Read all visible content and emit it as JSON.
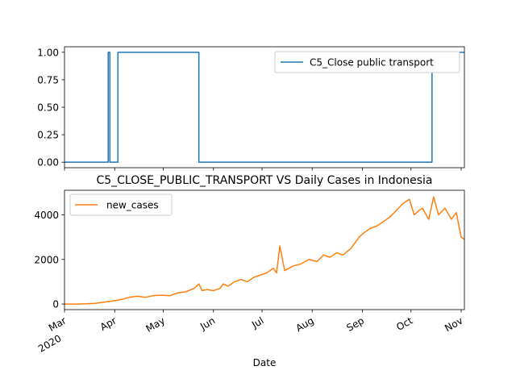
{
  "chart_data": [
    {
      "type": "line",
      "title": "",
      "xlabel": "",
      "ylabel": "",
      "ylim": [
        -0.05,
        1.05
      ],
      "y_ticks": [
        "0.00",
        "0.25",
        "0.50",
        "0.75",
        "1.00"
      ],
      "legend": {
        "placement": "upper right",
        "entries": [
          "C5_Close public transport"
        ]
      },
      "grid": false,
      "series": [
        {
          "name": "C5_Close public transport",
          "color": "#1f77b4",
          "x": [
            "2020-03-01",
            "2020-03-28",
            "2020-03-28",
            "2020-03-29",
            "2020-03-29",
            "2020-04-03",
            "2020-04-03",
            "2020-05-23",
            "2020-05-23",
            "2020-10-14",
            "2020-10-14",
            "2020-11-03"
          ],
          "values": [
            0,
            0,
            1,
            1,
            0,
            0,
            1,
            1,
            0,
            0,
            1,
            1
          ]
        }
      ]
    },
    {
      "type": "line",
      "title": "C5_CLOSE_PUBLIC_TRANSPORT VS Daily Cases in Indonesia",
      "xlabel": "Date",
      "ylabel": "",
      "ylim": [
        -250,
        5100
      ],
      "y_ticks": [
        "0",
        "2000",
        "4000"
      ],
      "x_ticks": [
        {
          "date": "2020-03-01",
          "label": "Mar",
          "sublabel": "2020"
        },
        {
          "date": "2020-04-01",
          "label": "Apr"
        },
        {
          "date": "2020-05-01",
          "label": "May"
        },
        {
          "date": "2020-06-01",
          "label": "Jun"
        },
        {
          "date": "2020-07-01",
          "label": "Jul"
        },
        {
          "date": "2020-08-01",
          "label": "Aug"
        },
        {
          "date": "2020-09-01",
          "label": "Sep"
        },
        {
          "date": "2020-10-01",
          "label": "Oct"
        },
        {
          "date": "2020-11-01",
          "label": "Nov"
        }
      ],
      "legend": {
        "placement": "upper left",
        "entries": [
          "new_cases"
        ]
      },
      "grid": false,
      "series": [
        {
          "name": "new_cases",
          "color": "#ff7f0e",
          "x": [
            "2020-03-01",
            "2020-03-10",
            "2020-03-20",
            "2020-03-25",
            "2020-03-30",
            "2020-04-05",
            "2020-04-10",
            "2020-04-15",
            "2020-04-20",
            "2020-04-25",
            "2020-04-30",
            "2020-05-05",
            "2020-05-10",
            "2020-05-15",
            "2020-05-20",
            "2020-05-23",
            "2020-05-25",
            "2020-05-28",
            "2020-06-01",
            "2020-06-05",
            "2020-06-07",
            "2020-06-10",
            "2020-06-14",
            "2020-06-18",
            "2020-06-22",
            "2020-06-26",
            "2020-06-30",
            "2020-07-04",
            "2020-07-08",
            "2020-07-10",
            "2020-07-12",
            "2020-07-15",
            "2020-07-20",
            "2020-07-25",
            "2020-07-30",
            "2020-08-04",
            "2020-08-08",
            "2020-08-12",
            "2020-08-16",
            "2020-08-20",
            "2020-08-25",
            "2020-08-30",
            "2020-09-02",
            "2020-09-06",
            "2020-09-10",
            "2020-09-14",
            "2020-09-18",
            "2020-09-22",
            "2020-09-26",
            "2020-09-30",
            "2020-10-03",
            "2020-10-06",
            "2020-10-08",
            "2020-10-12",
            "2020-10-15",
            "2020-10-18",
            "2020-10-22",
            "2020-10-26",
            "2020-10-29",
            "2020-11-01",
            "2020-11-03"
          ],
          "values": [
            0,
            0,
            30,
            80,
            130,
            200,
            300,
            350,
            300,
            380,
            400,
            370,
            500,
            550,
            700,
            900,
            600,
            650,
            600,
            700,
            900,
            800,
            1000,
            1100,
            1000,
            1200,
            1300,
            1400,
            1600,
            1400,
            2600,
            1500,
            1700,
            1800,
            2000,
            1900,
            2200,
            2100,
            2300,
            2200,
            2500,
            3000,
            3200,
            3400,
            3500,
            3700,
            3900,
            4200,
            4500,
            4700,
            4000,
            4200,
            4300,
            3800,
            4800,
            4000,
            4300,
            3800,
            4100,
            3000,
            2900
          ]
        }
      ]
    }
  ]
}
